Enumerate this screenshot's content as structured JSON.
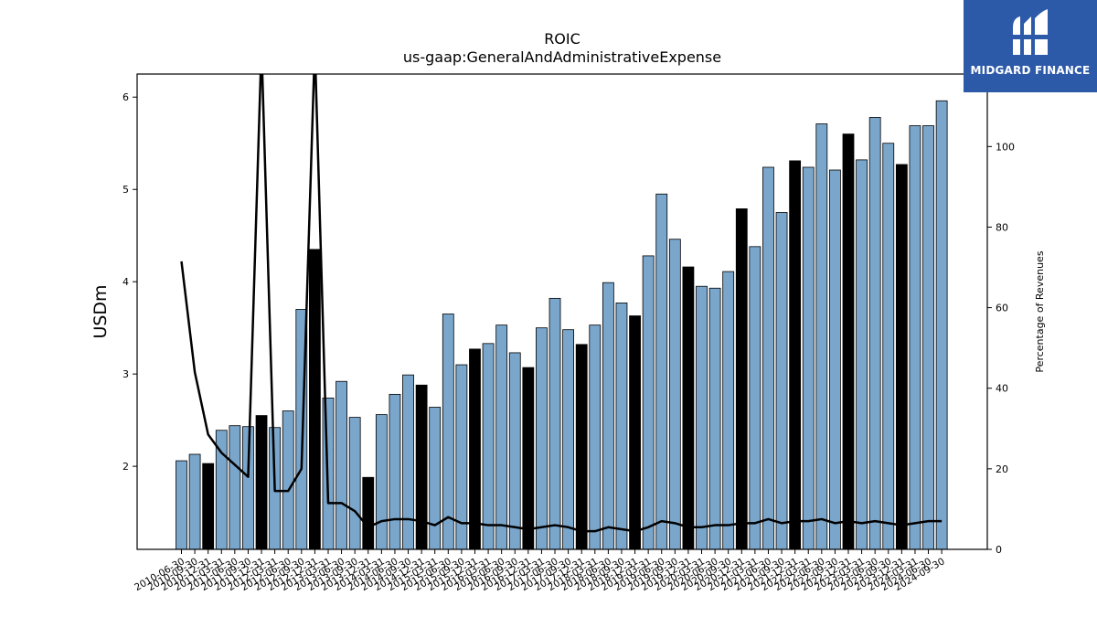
{
  "chart_data": {
    "type": "bar",
    "title": "ROIC",
    "subtitle": "us-gaap:GeneralAndAdministrativeExpense",
    "ylabel": "USDm",
    "y2label": "Percentage of Revenues",
    "ylim": [
      1.1,
      6.25
    ],
    "y2lim": [
      0,
      118
    ],
    "yticks": [
      2,
      3,
      4,
      5,
      6
    ],
    "y2ticks": [
      0,
      20,
      40,
      60,
      80,
      100
    ],
    "bar_color": "#7aa6cc",
    "highlight_color": "#000000",
    "line_color": "#000000",
    "x_tick_labels": [
      "2010-06-30",
      "2010-09-30",
      "2010-12-31",
      "2011-03-31",
      "2011-06-30",
      "2011-09-30",
      "2011-12-31",
      "2012-03-31",
      "2012-06-30",
      "2012-09-30",
      "2012-12-31",
      "2013-03-31",
      "2013-06-30",
      "2013-09-30",
      "2013-12-31",
      "2014-03-31",
      "2014-06-30",
      "2014-09-30",
      "2014-12-31",
      "2015-03-31",
      "2015-06-30",
      "2015-09-30",
      "2015-12-31",
      "2016-03-31",
      "2016-06-30",
      "2016-09-30",
      "2016-12-31",
      "2017-03-31",
      "2017-06-30",
      "2017-09-30",
      "2017-12-31",
      "2018-03-31",
      "2018-06-30",
      "2018-09-30",
      "2018-12-31",
      "2019-03-31",
      "2019-06-30",
      "2019-09-30",
      "2019-12-31",
      "2020-03-31",
      "2020-06-30",
      "2020-09-30",
      "2020-12-31",
      "2021-03-31",
      "2021-06-30",
      "2021-09-30",
      "2021-12-31",
      "2022-03-31",
      "2022-06-30",
      "2022-09-30",
      "2022-12-31",
      "2023-03-31",
      "2023-06-30",
      "2023-09-30",
      "2023-12-31",
      "2024-03-31",
      "2024-06-30",
      "2024-09-30"
    ],
    "bars": [
      {
        "x": "2010-06-30",
        "value": 2.06,
        "highlight": false
      },
      {
        "x": "2010-09-30",
        "value": 2.13,
        "highlight": false
      },
      {
        "x": "2010-12-31",
        "value": 2.03,
        "highlight": true
      },
      {
        "x": "2011-03-31",
        "value": 2.39,
        "highlight": false
      },
      {
        "x": "2011-06-30",
        "value": 2.44,
        "highlight": false
      },
      {
        "x": "2011-09-30",
        "value": 2.43,
        "highlight": false
      },
      {
        "x": "2011-12-31",
        "value": 2.55,
        "highlight": true
      },
      {
        "x": "2012-03-31",
        "value": 2.42,
        "highlight": false
      },
      {
        "x": "2012-06-30",
        "value": 2.6,
        "highlight": false
      },
      {
        "x": "2012-09-30",
        "value": 3.7,
        "highlight": false
      },
      {
        "x": "2012-12-31",
        "value": 4.35,
        "highlight": true
      },
      {
        "x": "2013-03-31",
        "value": 2.74,
        "highlight": false
      },
      {
        "x": "2013-06-30",
        "value": 2.92,
        "highlight": false
      },
      {
        "x": "2013-09-30",
        "value": 2.53,
        "highlight": false
      },
      {
        "x": "2013-12-31",
        "value": 1.88,
        "highlight": true
      },
      {
        "x": "2014-03-31",
        "value": 2.56,
        "highlight": false
      },
      {
        "x": "2014-06-30",
        "value": 2.78,
        "highlight": false
      },
      {
        "x": "2014-09-30",
        "value": 2.99,
        "highlight": false
      },
      {
        "x": "2014-12-31",
        "value": 2.88,
        "highlight": true
      },
      {
        "x": "2015-03-31",
        "value": 2.64,
        "highlight": false
      },
      {
        "x": "2015-06-30",
        "value": 3.65,
        "highlight": false
      },
      {
        "x": "2015-09-30",
        "value": 3.1,
        "highlight": false
      },
      {
        "x": "2015-12-31",
        "value": 3.27,
        "highlight": true
      },
      {
        "x": "2016-03-31",
        "value": 3.33,
        "highlight": false
      },
      {
        "x": "2016-06-30",
        "value": 3.53,
        "highlight": false
      },
      {
        "x": "2016-09-30",
        "value": 3.23,
        "highlight": false
      },
      {
        "x": "2016-12-31",
        "value": 3.07,
        "highlight": true
      },
      {
        "x": "2017-03-31",
        "value": 3.5,
        "highlight": false
      },
      {
        "x": "2017-06-30",
        "value": 3.82,
        "highlight": false
      },
      {
        "x": "2017-09-30",
        "value": 3.48,
        "highlight": false
      },
      {
        "x": "2017-12-31",
        "value": 3.32,
        "highlight": true
      },
      {
        "x": "2018-03-31",
        "value": 3.53,
        "highlight": false
      },
      {
        "x": "2018-06-30",
        "value": 3.99,
        "highlight": false
      },
      {
        "x": "2018-09-30",
        "value": 3.77,
        "highlight": false
      },
      {
        "x": "2018-12-31",
        "value": 3.63,
        "highlight": true
      },
      {
        "x": "2019-03-31",
        "value": 4.28,
        "highlight": false
      },
      {
        "x": "2019-06-30",
        "value": 4.95,
        "highlight": false
      },
      {
        "x": "2019-09-30",
        "value": 4.46,
        "highlight": false
      },
      {
        "x": "2019-12-31",
        "value": 4.16,
        "highlight": true
      },
      {
        "x": "2020-03-31",
        "value": 3.95,
        "highlight": false
      },
      {
        "x": "2020-06-30",
        "value": 3.93,
        "highlight": false
      },
      {
        "x": "2020-09-30",
        "value": 4.11,
        "highlight": false
      },
      {
        "x": "2020-12-31",
        "value": 4.79,
        "highlight": true
      },
      {
        "x": "2021-03-31",
        "value": 4.38,
        "highlight": false
      },
      {
        "x": "2021-06-30",
        "value": 5.24,
        "highlight": false
      },
      {
        "x": "2021-09-30",
        "value": 4.75,
        "highlight": false
      },
      {
        "x": "2021-12-31",
        "value": 5.31,
        "highlight": true
      },
      {
        "x": "2022-03-31",
        "value": 5.24,
        "highlight": false
      },
      {
        "x": "2022-06-30",
        "value": 5.71,
        "highlight": false
      },
      {
        "x": "2022-09-30",
        "value": 5.21,
        "highlight": false
      },
      {
        "x": "2022-12-31",
        "value": 5.6,
        "highlight": true
      },
      {
        "x": "2023-03-31",
        "value": 5.32,
        "highlight": false
      },
      {
        "x": "2023-06-30",
        "value": 5.78,
        "highlight": false
      },
      {
        "x": "2023-09-30",
        "value": 5.5,
        "highlight": false
      },
      {
        "x": "2023-12-31",
        "value": 5.27,
        "highlight": true
      },
      {
        "x": "2024-03-31",
        "value": 5.69,
        "highlight": false
      },
      {
        "x": "2024-06-30",
        "value": 5.69,
        "highlight": false
      },
      {
        "x": "2024-09-30",
        "value": 5.96,
        "highlight": false
      }
    ],
    "pct_of_revenues": [
      71.5,
      44,
      28.5,
      24,
      21,
      18,
      125,
      14.5,
      14.5,
      20,
      125,
      11.5,
      11.5,
      9.5,
      5.5,
      7,
      7.5,
      7.5,
      7,
      6,
      8,
      6.5,
      6.5,
      6,
      6,
      5.5,
      5,
      5.5,
      6,
      5.5,
      4.5,
      4.5,
      5.5,
      5,
      4.5,
      5.5,
      7,
      6.5,
      5.5,
      5.5,
      6,
      6,
      6.5,
      6.5,
      7.5,
      6.5,
      7,
      7,
      7.5,
      6.5,
      7,
      6.5,
      7,
      6.5,
      6,
      6.5,
      7,
      7
    ]
  },
  "logo": {
    "brand": "MIDGARD FINANCE"
  }
}
